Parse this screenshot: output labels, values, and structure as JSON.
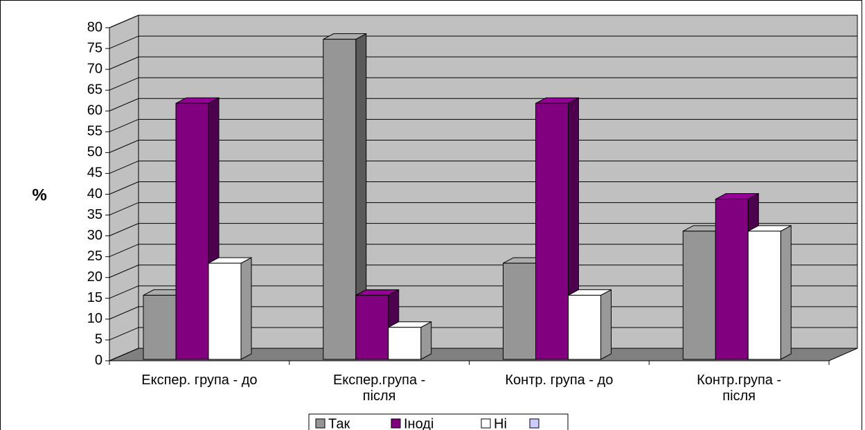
{
  "chart_data": {
    "type": "bar3d",
    "y_label": "%",
    "categories": [
      "Експер. група - до",
      "Експер.група - після",
      "Контр. група - до",
      "Контр.група - після"
    ],
    "series": [
      {
        "name": "Так",
        "color": "#969696",
        "values": [
          15.4,
          76.9,
          23.1,
          30.8
        ]
      },
      {
        "name": "Іноді",
        "color": "#800080",
        "values": [
          61.5,
          15.4,
          61.5,
          38.5
        ]
      },
      {
        "name": "Ні",
        "color": "#ffffff",
        "values": [
          23.1,
          7.7,
          15.4,
          30.8
        ]
      }
    ],
    "ylim": [
      0,
      80
    ],
    "yticks": [
      0,
      5,
      10,
      15,
      20,
      25,
      30,
      35,
      40,
      45,
      50,
      55,
      60,
      65,
      70,
      75,
      80
    ],
    "grid": true
  }
}
